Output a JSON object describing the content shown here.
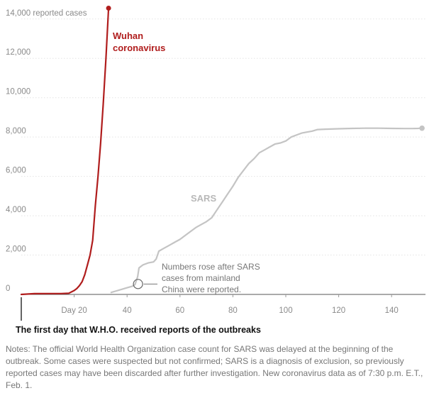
{
  "chart_data": {
    "type": "line",
    "xlabel": "The first day that W.H.O. received reports of the outbreaks",
    "ylabel": "",
    "xlim": [
      0,
      153
    ],
    "ylim": [
      0,
      15000
    ],
    "grid": true,
    "y_ticks": [
      {
        "value": 0,
        "label": "0"
      },
      {
        "value": 2000,
        "label": "2,000"
      },
      {
        "value": 4000,
        "label": "4,000"
      },
      {
        "value": 6000,
        "label": "6,000"
      },
      {
        "value": 8000,
        "label": "8,000"
      },
      {
        "value": 10000,
        "label": "10,000"
      },
      {
        "value": 12000,
        "label": "12,000"
      },
      {
        "value": 14000,
        "label": "14,000 reported cases"
      }
    ],
    "x_ticks": [
      {
        "value": 20,
        "label": "Day 20"
      },
      {
        "value": 40,
        "label": "40"
      },
      {
        "value": 60,
        "label": "60"
      },
      {
        "value": 80,
        "label": "80"
      },
      {
        "value": 100,
        "label": "100"
      },
      {
        "value": 120,
        "label": "120"
      },
      {
        "value": 140,
        "label": "140"
      }
    ],
    "series": [
      {
        "name": "Wuhan coronavirus",
        "label_lines": [
          "Wuhan",
          "coronavirus"
        ],
        "color": "#b01d1d",
        "x": [
          0,
          5,
          10,
          15,
          18,
          20,
          21,
          22,
          23,
          24,
          25,
          26,
          27,
          28,
          29,
          30,
          31,
          32,
          33
        ],
        "y": [
          0,
          40,
          45,
          45,
          60,
          200,
          300,
          450,
          650,
          1000,
          1500,
          2000,
          2750,
          4500,
          6000,
          7700,
          9700,
          12000,
          14550
        ]
      },
      {
        "name": "SARS",
        "label_lines": [
          "SARS"
        ],
        "color": "#c4c4c4",
        "x": [
          34,
          36,
          38,
          40,
          42,
          43,
          44,
          44.5,
          46,
          48,
          50,
          51,
          52,
          54,
          56,
          58,
          60,
          62,
          64,
          66,
          68,
          70,
          72,
          74,
          76,
          78,
          80,
          82,
          84,
          86,
          88,
          90,
          92,
          94,
          96,
          98,
          100,
          102,
          104,
          106,
          108,
          110,
          112,
          115,
          120,
          125,
          130,
          135,
          140,
          145,
          148,
          150,
          151.5
        ],
        "y": [
          100,
          180,
          260,
          340,
          420,
          500,
          900,
          1350,
          1500,
          1600,
          1650,
          1800,
          2200,
          2350,
          2500,
          2650,
          2800,
          3000,
          3200,
          3400,
          3550,
          3700,
          3900,
          4300,
          4700,
          5100,
          5500,
          5950,
          6300,
          6650,
          6900,
          7200,
          7350,
          7500,
          7650,
          7700,
          7800,
          8000,
          8100,
          8200,
          8250,
          8300,
          8380,
          8400,
          8420,
          8440,
          8450,
          8450,
          8440,
          8430,
          8430,
          8440,
          8450
        ]
      }
    ],
    "annotations": [
      {
        "lines": [
          "Numbers rose after SARS",
          "cases from mainland",
          "China were reported."
        ],
        "x": 44,
        "y": 500
      }
    ]
  },
  "notes": "Notes: The official World Health Organization case count for SARS was delayed at the beginning of the outbreak. Some cases were suspected but not confirmed; SARS is a diagnosis of exclusion, so previously reported cases may have been discarded after further investigation. New coronavirus data as of 7:30 p.m. E.T., Feb. 1."
}
